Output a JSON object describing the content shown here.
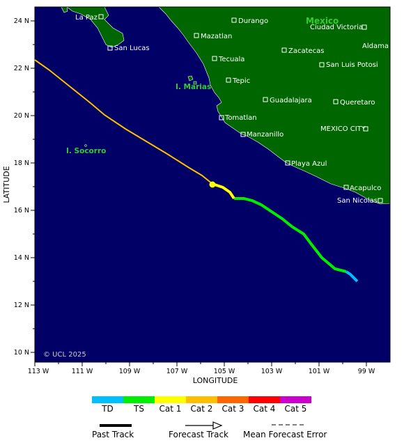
{
  "axes": {
    "x_title": "LONGITUDE",
    "y_title": "LATITUDE",
    "x_ticks": [
      "113 W",
      "111 W",
      "109 W",
      "107 W",
      "105 W",
      "103 W",
      "101 W",
      "99 W"
    ],
    "y_ticks": [
      "24 N",
      "22 N",
      "20 N",
      "18 N",
      "16 N",
      "14 N",
      "12 N",
      "10 N"
    ]
  },
  "credit": "© UCL 2025",
  "regions": {
    "country": "Mexico",
    "islands": [
      "I. Marias",
      "I. Socorro"
    ]
  },
  "cities": [
    {
      "name": "La Paz"
    },
    {
      "name": "San Lucas"
    },
    {
      "name": "Durango"
    },
    {
      "name": "Mazatlan"
    },
    {
      "name": "Ciudad Victoria"
    },
    {
      "name": "Aldama"
    },
    {
      "name": "Zacatecas"
    },
    {
      "name": "Tecuala"
    },
    {
      "name": "San Luis Potosi"
    },
    {
      "name": "Tepic"
    },
    {
      "name": "Guadalajara"
    },
    {
      "name": "Queretaro"
    },
    {
      "name": "Tomatlan"
    },
    {
      "name": "MEXICO CITY"
    },
    {
      "name": "Manzanillo"
    },
    {
      "name": "Playa Azul"
    },
    {
      "name": "Acapulco"
    },
    {
      "name": "San Nicolas"
    }
  ],
  "legend": {
    "categories": [
      {
        "label": "TD",
        "color": "#00bfff"
      },
      {
        "label": "TS",
        "color": "#00ee00"
      },
      {
        "label": "Cat 1",
        "color": "#ffff00"
      },
      {
        "label": "Cat 2",
        "color": "#ffbf00"
      },
      {
        "label": "Cat 3",
        "color": "#ff6600"
      },
      {
        "label": "Cat 4",
        "color": "#ff0000"
      },
      {
        "label": "Cat 5",
        "color": "#cc00cc"
      }
    ],
    "past_track": "Past Track",
    "forecast_track": "Forecast Track",
    "mean_error": "Mean Forecast Error"
  },
  "colors": {
    "ocean": "#000066",
    "land": "#006600",
    "region_text": "#33cc33"
  }
}
